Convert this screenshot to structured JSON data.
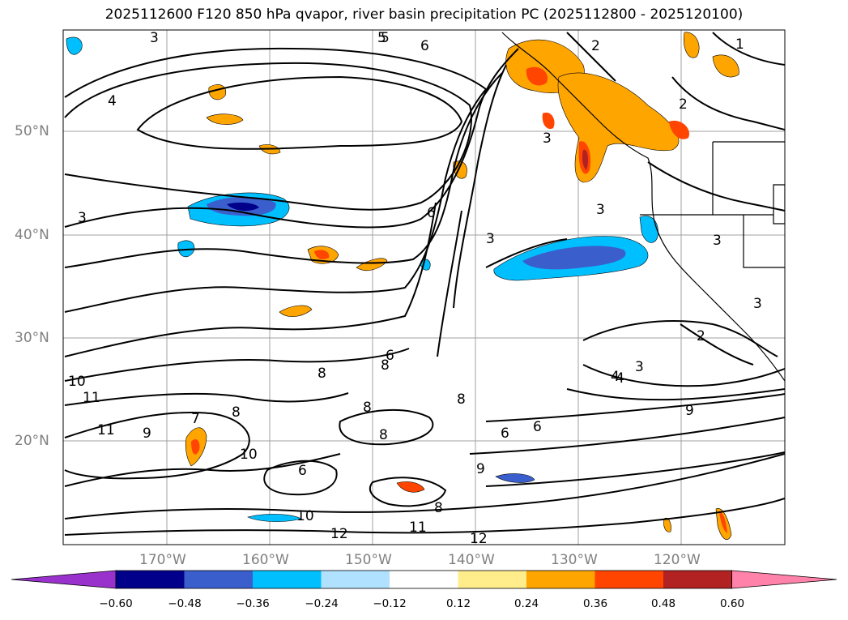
{
  "title": "2025112600 F120 850 hPa qvapor, river basin precipitation PC (2025112800 - 2025120100)",
  "map": {
    "longitude_labels": [
      "170°W",
      "160°W",
      "150°W",
      "140°W",
      "130°W",
      "120°W"
    ],
    "latitude_labels": [
      "50°N",
      "40°N",
      "30°N",
      "20°N"
    ],
    "contour_labels": [
      "3",
      "4",
      "5",
      "6",
      "2",
      "1",
      "3",
      "3",
      "2",
      "3",
      "3",
      "6",
      "5",
      "3",
      "2",
      "3",
      "4",
      "3",
      "4",
      "9",
      "10",
      "11",
      "11",
      "9",
      "8",
      "7",
      "6",
      "8",
      "8",
      "8",
      "8",
      "6",
      "6",
      "8",
      "9",
      "10",
      "10",
      "12",
      "11",
      "12",
      "8",
      "6"
    ]
  },
  "colorbar": {
    "tick_labels": [
      "−0.60",
      "−0.48",
      "−0.36",
      "−0.24",
      "−0.12",
      "0.12",
      "0.24",
      "0.36",
      "0.48",
      "0.60"
    ],
    "colors": [
      "#9932cc",
      "#00008b",
      "#3a5fcd",
      "#00bfff",
      "#b0e2ff",
      "#ffffff",
      "#ffec8b",
      "#ffa500",
      "#ff4500",
      "#b22222",
      "#ff82ab"
    ]
  }
}
